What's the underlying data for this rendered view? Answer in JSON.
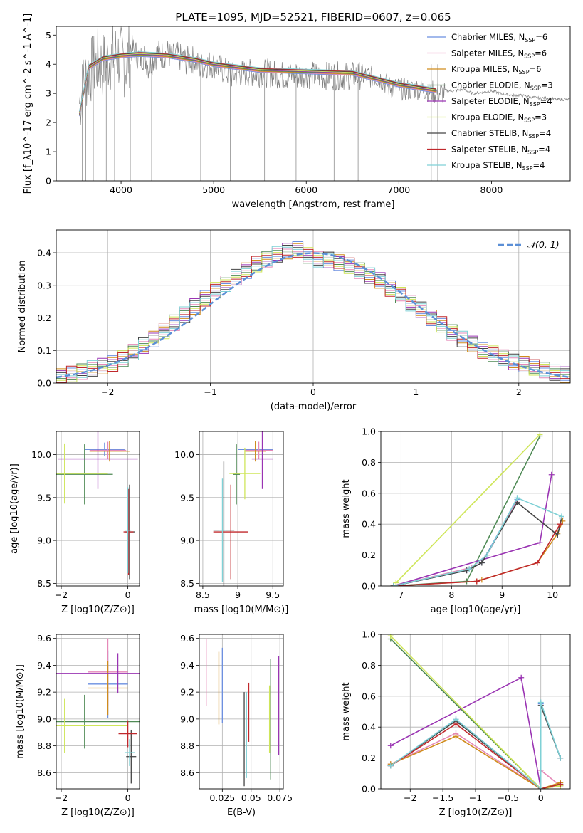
{
  "figure_title": "PLATE=1095, MJD=52521, FIBERID=0607, z=0.065",
  "models": [
    {
      "label": "Chabrier MILES, N",
      "sub": "SSP",
      "n": "=6",
      "color": "#6b8fe0"
    },
    {
      "label": "Salpeter MILES, N",
      "sub": "SSP",
      "n": "=6",
      "color": "#e589b8"
    },
    {
      "label": "Kroupa MILES, N",
      "sub": "SSP",
      "n": "=6",
      "color": "#d08c1c"
    },
    {
      "label": "Chabrier ELODIE, N",
      "sub": "SSP",
      "n": "=3",
      "color": "#4f8a55"
    },
    {
      "label": "Salpeter ELODIE, N",
      "sub": "SSP",
      "n": "=4",
      "color": "#9a34b3"
    },
    {
      "label": "Kroupa ELODIE, N",
      "sub": "SSP",
      "n": "=3",
      "color": "#cfe65a"
    },
    {
      "label": "Chabrier STELIB, N",
      "sub": "SSP",
      "n": "=4",
      "color": "#444444"
    },
    {
      "label": "Salpeter STELIB, N",
      "sub": "SSP",
      "n": "=4",
      "color": "#c0282c"
    },
    {
      "label": "Kroupa STELIB, N",
      "sub": "SSP",
      "n": "=4",
      "color": "#7fd1d6"
    }
  ],
  "chart_data": [
    {
      "type": "line",
      "name": "spectrum",
      "xlabel": "wavelength [Angstrom, rest frame]",
      "ylabel": "Flux [f_λ10^-17 erg cm^-2 s^-1 A^-1]",
      "xlim": [
        3300,
        8850
      ],
      "ylim": [
        0,
        5.3
      ],
      "xticks": [
        4000,
        5000,
        6000,
        7000,
        8000
      ],
      "yticks": [
        0,
        1,
        2,
        3,
        4,
        5
      ],
      "data_series": {
        "name": "data",
        "color": "#808080",
        "x": [
          3550,
          3600,
          3650,
          3700,
          3750,
          3800,
          3850,
          3900,
          3950,
          4000,
          4050,
          4100,
          4150,
          4200,
          4250,
          4300,
          4350,
          4400,
          4450,
          4500,
          4550,
          4600,
          4650,
          4700,
          4750,
          4800,
          4850,
          4900,
          4950,
          5000,
          5100,
          5200,
          5300,
          5400,
          5500,
          5600,
          5700,
          5800,
          5900,
          6000,
          6100,
          6200,
          6300,
          6400,
          6500,
          6600,
          6700,
          6800,
          6900,
          7000,
          7100,
          7200,
          7300,
          7400,
          7500,
          7600,
          7700,
          7800,
          7900,
          8000,
          8100,
          8200,
          8300,
          8400,
          8500,
          8600,
          8700,
          8800,
          8850
        ],
        "y": [
          2.9,
          3.6,
          4.0,
          4.1,
          4.3,
          4.2,
          4.35,
          4.5,
          4.6,
          4.4,
          4.2,
          4.7,
          4.5,
          4.3,
          4.4,
          4.0,
          4.3,
          4.5,
          4.4,
          4.5,
          4.3,
          4.4,
          4.3,
          4.2,
          4.3,
          4.2,
          4.0,
          4.1,
          4.1,
          4.1,
          3.9,
          3.7,
          3.8,
          3.8,
          3.8,
          3.8,
          3.75,
          3.7,
          3.7,
          3.75,
          3.7,
          3.7,
          3.7,
          3.7,
          3.7,
          3.7,
          3.65,
          3.6,
          3.3,
          3.25,
          3.2,
          3.25,
          3.2,
          3.1,
          3.1,
          3.1,
          3.15,
          3.0,
          3.05,
          3.1,
          3.0,
          2.95,
          2.95,
          2.9,
          2.85,
          2.85,
          2.8,
          2.8,
          2.8
        ]
      },
      "model_x": [
        3550,
        3650,
        3800,
        4000,
        4200,
        4500,
        4800,
        5000,
        5500,
        6000,
        6500,
        7000,
        7400
      ],
      "model_y": [
        2.3,
        3.9,
        4.2,
        4.3,
        4.35,
        4.3,
        4.15,
        4.0,
        3.8,
        3.75,
        3.7,
        3.3,
        3.1
      ],
      "legend": "top-right"
    },
    {
      "type": "line",
      "name": "residual_distribution",
      "xlabel": "(data-model)/error",
      "ylabel": "Normed distribution",
      "xlim": [
        -2.5,
        2.5
      ],
      "ylim": [
        0,
        0.47
      ],
      "xticks": [
        -2,
        -1,
        0,
        1,
        2
      ],
      "yticks": [
        0.0,
        0.1,
        0.2,
        0.3,
        0.4
      ],
      "reference": {
        "label": "𝒩(0, 1)",
        "color": "#5b8fd6"
      },
      "bin_width": 0.1,
      "bin_centers": [
        -2.45,
        -2.35,
        -2.25,
        -2.15,
        -2.05,
        -1.95,
        -1.85,
        -1.75,
        -1.65,
        -1.55,
        -1.45,
        -1.35,
        -1.25,
        -1.15,
        -1.05,
        -0.95,
        -0.85,
        -0.75,
        -0.65,
        -0.55,
        -0.45,
        -0.35,
        -0.25,
        -0.15,
        -0.05,
        0.05,
        0.15,
        0.25,
        0.35,
        0.45,
        0.55,
        0.65,
        0.75,
        0.85,
        0.95,
        1.05,
        1.15,
        1.25,
        1.35,
        1.45,
        1.55,
        1.65,
        1.75,
        1.85,
        1.95,
        2.05,
        2.15,
        2.25,
        2.35,
        2.45
      ],
      "histogram_base": [
        0.02,
        0.028,
        0.035,
        0.045,
        0.052,
        0.06,
        0.075,
        0.095,
        0.115,
        0.135,
        0.16,
        0.185,
        0.21,
        0.235,
        0.26,
        0.285,
        0.305,
        0.325,
        0.345,
        0.365,
        0.38,
        0.395,
        0.405,
        0.41,
        0.392,
        0.38,
        0.378,
        0.37,
        0.36,
        0.345,
        0.33,
        0.315,
        0.29,
        0.27,
        0.245,
        0.225,
        0.2,
        0.18,
        0.155,
        0.135,
        0.12,
        0.1,
        0.09,
        0.078,
        0.065,
        0.058,
        0.048,
        0.04,
        0.032,
        0.026
      ]
    },
    {
      "type": "scatter",
      "name": "age_vs_Z",
      "xlabel": "Z [log10(Z/Z⊙)]",
      "ylabel": "age  [log10(age/yr)]",
      "xlim": [
        -2.15,
        0.35
      ],
      "ylim": [
        8.47,
        10.27
      ],
      "xticks": [
        -2,
        0
      ],
      "yticks": [
        8.5,
        9.0,
        9.5,
        10.0
      ],
      "crosses": [
        {
          "m": 0,
          "x": -0.7,
          "y": 10.06,
          "xe": 0.6,
          "ye": 0.08
        },
        {
          "m": 1,
          "x": -0.6,
          "y": 10.05,
          "xe": 0.55,
          "ye": 0.1
        },
        {
          "m": 2,
          "x": -0.55,
          "y": 10.04,
          "xe": 0.6,
          "ye": 0.12
        },
        {
          "m": 3,
          "x": -1.3,
          "y": 9.77,
          "xe": 0.85,
          "ye": 0.35
        },
        {
          "m": 4,
          "x": -0.9,
          "y": 9.95,
          "xe": 1.2,
          "ye": 0.35
        },
        {
          "m": 5,
          "x": -1.9,
          "y": 9.78,
          "xe": 1.3,
          "ye": 0.35
        },
        {
          "m": 6,
          "x": 0.05,
          "y": 9.1,
          "xe": 0.15,
          "ye": 0.55
        },
        {
          "m": 7,
          "x": 0.02,
          "y": 9.1,
          "xe": 0.15,
          "ye": 0.5
        },
        {
          "m": 8,
          "x": 0.0,
          "y": 9.12,
          "xe": 0.1,
          "ye": 0.5
        }
      ]
    },
    {
      "type": "scatter",
      "name": "age_vs_mass",
      "xlabel": "mass [log10(M/M⊙)]",
      "ylabel": "",
      "xlim": [
        8.45,
        9.65
      ],
      "ylim": [
        8.47,
        10.27
      ],
      "xticks": [
        8.5,
        9.0,
        9.5
      ],
      "yticks": [
        8.5,
        9.0,
        9.5,
        10.0
      ],
      "crosses": [
        {
          "m": 0,
          "x": 9.25,
          "y": 10.06,
          "xe": 0.25,
          "ye": 0.08
        },
        {
          "m": 1,
          "x": 9.3,
          "y": 10.05,
          "xe": 0.2,
          "ye": 0.1
        },
        {
          "m": 2,
          "x": 9.25,
          "y": 10.04,
          "xe": 0.15,
          "ye": 0.12
        },
        {
          "m": 3,
          "x": 8.98,
          "y": 9.77,
          "xe": 0.05,
          "ye": 0.35
        },
        {
          "m": 4,
          "x": 9.35,
          "y": 9.95,
          "xe": 0.15,
          "ye": 0.35
        },
        {
          "m": 5,
          "x": 9.1,
          "y": 9.78,
          "xe": 0.22,
          "ye": 0.3
        },
        {
          "m": 6,
          "x": 8.8,
          "y": 9.12,
          "xe": 0.15,
          "ye": 0.8
        },
        {
          "m": 7,
          "x": 8.9,
          "y": 9.1,
          "xe": 0.25,
          "ye": 0.55
        },
        {
          "m": 8,
          "x": 8.78,
          "y": 9.12,
          "xe": 0.05,
          "ye": 0.6
        }
      ]
    },
    {
      "type": "line",
      "name": "mass_weight_vs_age",
      "xlabel": "age  [log10(age/yr)]",
      "ylabel": "mass weight",
      "xlim": [
        6.6,
        10.35
      ],
      "ylim": [
        0,
        1.0
      ],
      "xticks": [
        7,
        8,
        9,
        10
      ],
      "yticks": [
        0.0,
        0.2,
        0.4,
        0.6,
        0.8,
        1.0
      ],
      "series": [
        {
          "m": 0,
          "x": [
            6.85,
            8.3,
            8.6,
            9.3
          ],
          "y": [
            0.0,
            0.1,
            0.15,
            0.56
          ]
        },
        {
          "m": 1,
          "x": [
            6.85,
            8.4,
            8.7,
            9.3
          ],
          "y": [
            0.0,
            0.12,
            0.2,
            0.55
          ]
        },
        {
          "m": 2,
          "x": [
            6.85,
            8.5,
            8.6,
            9.7,
            10.1,
            10.2
          ],
          "y": [
            0.0,
            0.03,
            0.04,
            0.15,
            0.34,
            0.42
          ]
        },
        {
          "m": 3,
          "x": [
            6.85,
            8.3,
            9.75
          ],
          "y": [
            0.0,
            0.03,
            0.97
          ]
        },
        {
          "m": 4,
          "x": [
            6.85,
            9.75,
            9.98
          ],
          "y": [
            0.0,
            0.28,
            0.72
          ]
        },
        {
          "m": 5,
          "x": [
            6.9,
            9.75
          ],
          "y": [
            0.02,
            0.98
          ]
        },
        {
          "m": 6,
          "x": [
            6.85,
            8.3,
            8.6,
            9.3,
            10.1,
            10.18
          ],
          "y": [
            0.0,
            0.1,
            0.15,
            0.54,
            0.33,
            0.44
          ]
        },
        {
          "m": 7,
          "x": [
            6.85,
            8.5,
            9.7,
            10.15
          ],
          "y": [
            0.0,
            0.03,
            0.15,
            0.4
          ]
        },
        {
          "m": 8,
          "x": [
            6.85,
            8.35,
            8.7,
            9.3,
            10.18
          ],
          "y": [
            0.0,
            0.11,
            0.2,
            0.57,
            0.45
          ]
        }
      ]
    },
    {
      "type": "scatter",
      "name": "mass_vs_Z",
      "xlabel": "Z [log10(Z/Z⊙)]",
      "ylabel": "mass [log10(M/M⊙)]",
      "xlim": [
        -2.15,
        0.35
      ],
      "ylim": [
        8.48,
        9.63
      ],
      "xticks": [
        -2,
        0
      ],
      "yticks": [
        8.6,
        8.8,
        9.0,
        9.2,
        9.4,
        9.6
      ],
      "crosses": [
        {
          "m": 0,
          "x": -0.6,
          "y": 9.26,
          "xe": 0.6,
          "ye": 0.25
        },
        {
          "m": 1,
          "x": -0.6,
          "y": 9.35,
          "xe": 0.6,
          "ye": 0.25
        },
        {
          "m": 2,
          "x": -0.6,
          "y": 9.23,
          "xe": 0.6,
          "ye": 0.2
        },
        {
          "m": 3,
          "x": -1.3,
          "y": 8.98,
          "xe": 2.0,
          "ye": 0.2
        },
        {
          "m": 4,
          "x": -0.3,
          "y": 9.34,
          "xe": 2.0,
          "ye": 0.15
        },
        {
          "m": 5,
          "x": -1.9,
          "y": 8.95,
          "xe": 1.9,
          "ye": 0.2
        },
        {
          "m": 6,
          "x": 0.1,
          "y": 8.72,
          "xe": 0.15,
          "ye": 0.2
        },
        {
          "m": 7,
          "x": 0.0,
          "y": 8.89,
          "xe": 0.28,
          "ye": 0.1
        },
        {
          "m": 8,
          "x": 0.05,
          "y": 8.75,
          "xe": 0.15,
          "ye": 0.1
        }
      ]
    },
    {
      "type": "scatter",
      "name": "mass_vs_EBV",
      "xlabel": "E(B-V)",
      "ylabel": "",
      "xlim": [
        0.005,
        0.078
      ],
      "ylim": [
        8.48,
        9.63
      ],
      "xticks": [
        0.025,
        0.05,
        0.075
      ],
      "yticks": [
        8.6,
        8.8,
        9.0,
        9.2,
        9.4,
        9.6
      ],
      "crosses": [
        {
          "m": 0,
          "x": 0.025,
          "y": 9.25,
          "xe": 0,
          "ye": 0.28
        },
        {
          "m": 1,
          "x": 0.011,
          "y": 9.35,
          "xe": 0,
          "ye": 0.25
        },
        {
          "m": 2,
          "x": 0.022,
          "y": 9.23,
          "xe": 0,
          "ye": 0.27
        },
        {
          "m": 3,
          "x": 0.067,
          "y": 9.0,
          "xe": 0,
          "ye": 0.45
        },
        {
          "m": 4,
          "x": 0.074,
          "y": 9.1,
          "xe": 0,
          "ye": 0.37
        },
        {
          "m": 5,
          "x": 0.066,
          "y": 9.0,
          "xe": 0,
          "ye": 0.25
        },
        {
          "m": 6,
          "x": 0.044,
          "y": 8.85,
          "xe": 0,
          "ye": 0.35
        },
        {
          "m": 7,
          "x": 0.048,
          "y": 9.05,
          "xe": 0,
          "ye": 0.22
        },
        {
          "m": 8,
          "x": 0.046,
          "y": 8.88,
          "xe": 0,
          "ye": 0.32
        }
      ]
    },
    {
      "type": "line",
      "name": "mass_weight_vs_Z",
      "xlabel": "Z [log10(Z/Z⊙)]",
      "ylabel": "mass weight",
      "xlim": [
        -2.45,
        0.45
      ],
      "ylim": [
        0,
        1.0
      ],
      "xticks": [
        -2.0,
        -1.5,
        -1.0,
        -0.5,
        0.0
      ],
      "yticks": [
        0.0,
        0.2,
        0.4,
        0.6,
        0.8,
        1.0
      ],
      "series": [
        {
          "m": 0,
          "x": [
            -2.3,
            -1.3,
            0.0,
            0.0,
            0.3
          ],
          "y": [
            0.15,
            0.45,
            0.0,
            0.55,
            0.2
          ]
        },
        {
          "m": 1,
          "x": [
            -2.3,
            -1.3,
            0.0,
            0.0,
            0.3
          ],
          "y": [
            0.16,
            0.36,
            0.0,
            0.12,
            0.02
          ]
        },
        {
          "m": 2,
          "x": [
            -2.3,
            -1.3,
            0.0,
            0.3
          ],
          "y": [
            0.16,
            0.34,
            0.0,
            0.04
          ]
        },
        {
          "m": 3,
          "x": [
            -2.3,
            0.0,
            0.3
          ],
          "y": [
            0.97,
            0.0,
            0.03
          ]
        },
        {
          "m": 4,
          "x": [
            -2.3,
            -0.3,
            0.0,
            0.3
          ],
          "y": [
            0.28,
            0.72,
            0.0,
            0.02
          ]
        },
        {
          "m": 5,
          "x": [
            -2.3,
            0.0,
            0.3
          ],
          "y": [
            0.99,
            0.0,
            0.02
          ]
        },
        {
          "m": 6,
          "x": [
            -2.3,
            -1.3,
            0.0,
            0.0,
            0.3
          ],
          "y": [
            0.15,
            0.44,
            0.0,
            0.54,
            0.2
          ]
        },
        {
          "m": 7,
          "x": [
            -2.3,
            -1.3,
            0.0,
            0.3
          ],
          "y": [
            0.15,
            0.42,
            0.0,
            0.03
          ]
        },
        {
          "m": 8,
          "x": [
            -2.3,
            -1.3,
            0.0,
            0.0,
            0.3
          ],
          "y": [
            0.15,
            0.45,
            0.0,
            0.56,
            0.2
          ]
        }
      ]
    }
  ]
}
